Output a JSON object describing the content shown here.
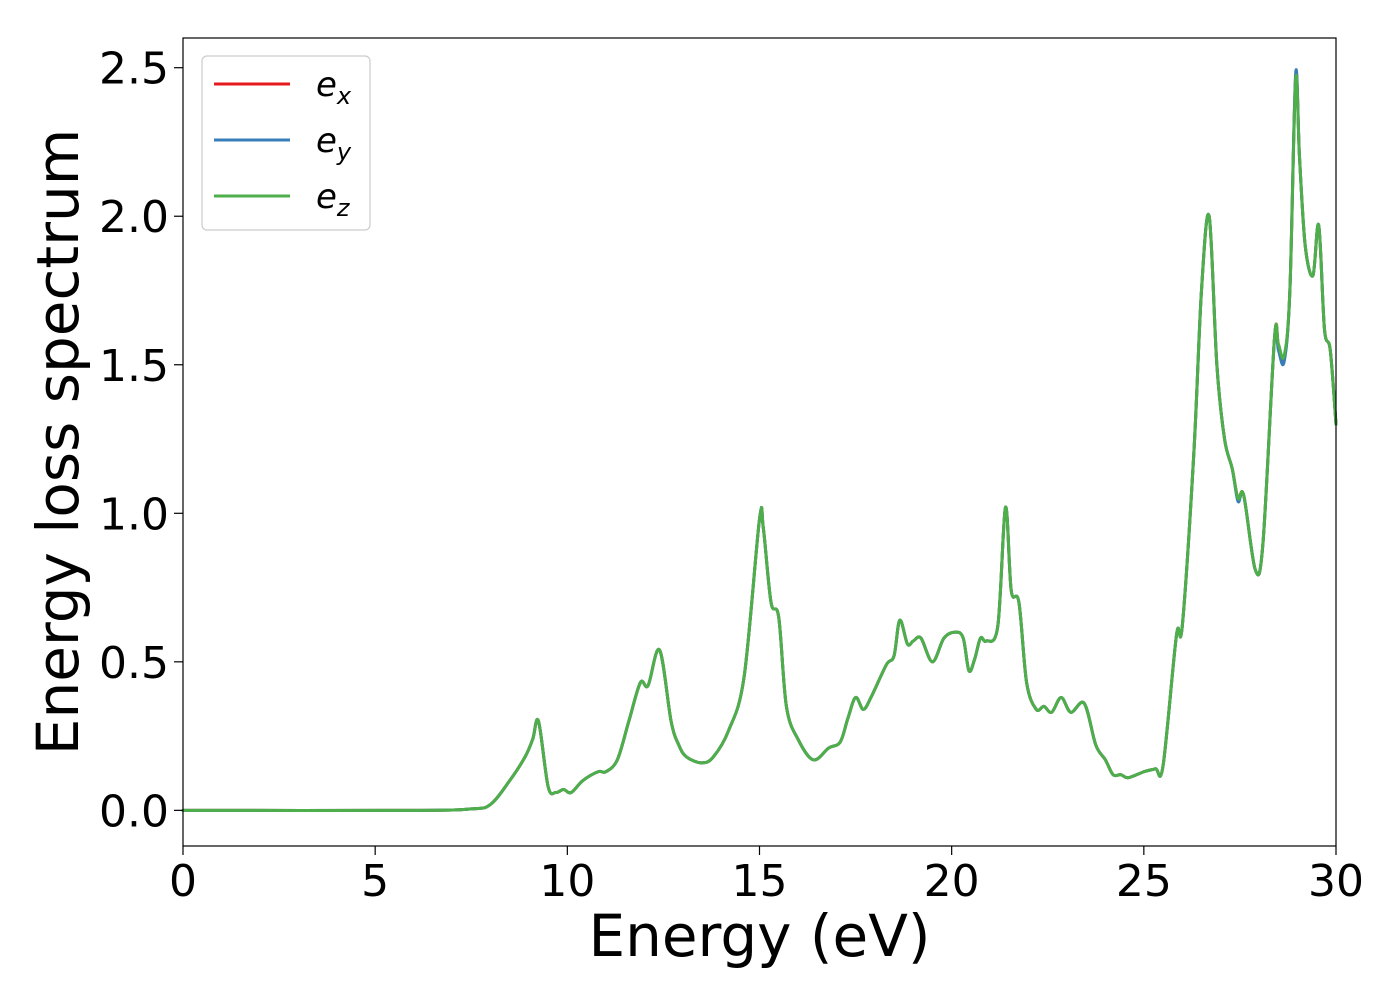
{
  "chart_data": {
    "type": "line",
    "xlabel": "Energy (eV)",
    "ylabel": "Energy loss spectrum",
    "xlim": [
      0,
      30
    ],
    "ylim": [
      -0.12,
      2.6
    ],
    "xticks": [
      0,
      5,
      10,
      15,
      20,
      25,
      30
    ],
    "xtick_labels": [
      "0",
      "5",
      "10",
      "15",
      "20",
      "25",
      "30"
    ],
    "yticks": [
      0.0,
      0.5,
      1.0,
      1.5,
      2.0,
      2.5
    ],
    "ytick_labels": [
      "0.0",
      "0.5",
      "1.0",
      "1.5",
      "2.0",
      "2.5"
    ],
    "grid": false,
    "legend_position": "top-left",
    "series": [
      {
        "name": "e",
        "subscript": "x",
        "color": "#e41a1c",
        "x": [
          0,
          6,
          7.5,
          8.0,
          8.5,
          8.9,
          9.1,
          9.25,
          9.5,
          9.7,
          9.9,
          10.1,
          10.4,
          10.8,
          11.0,
          11.3,
          11.6,
          11.9,
          12.1,
          12.4,
          12.7,
          12.9,
          13.1,
          13.5,
          13.8,
          14.2,
          14.6,
          15.0,
          15.1,
          15.3,
          15.5,
          15.7,
          16.0,
          16.4,
          16.8,
          17.1,
          17.3,
          17.5,
          17.7,
          17.9,
          18.3,
          18.5,
          18.65,
          18.85,
          19.0,
          19.2,
          19.5,
          19.8,
          20.1,
          20.3,
          20.45,
          20.6,
          20.75,
          20.9,
          21.2,
          21.4,
          21.55,
          21.75,
          21.95,
          22.2,
          22.4,
          22.6,
          22.85,
          23.1,
          23.45,
          23.75,
          24.0,
          24.2,
          24.4,
          24.6,
          25.0,
          25.3,
          25.5,
          25.85,
          26.0,
          26.3,
          26.5,
          26.7,
          26.9,
          27.1,
          27.3,
          27.45,
          27.6,
          27.9,
          28.1,
          28.4,
          28.5,
          28.65,
          28.8,
          28.95,
          29.05,
          29.2,
          29.4,
          29.55,
          29.7,
          29.85,
          30.0
        ],
        "y": [
          0.0,
          0.0,
          0.005,
          0.02,
          0.1,
          0.18,
          0.24,
          0.3,
          0.08,
          0.06,
          0.07,
          0.06,
          0.1,
          0.13,
          0.13,
          0.17,
          0.3,
          0.43,
          0.42,
          0.54,
          0.3,
          0.22,
          0.18,
          0.16,
          0.18,
          0.27,
          0.45,
          0.98,
          0.95,
          0.7,
          0.65,
          0.35,
          0.24,
          0.17,
          0.21,
          0.23,
          0.31,
          0.38,
          0.34,
          0.38,
          0.49,
          0.52,
          0.64,
          0.56,
          0.57,
          0.58,
          0.5,
          0.58,
          0.6,
          0.58,
          0.47,
          0.51,
          0.58,
          0.57,
          0.62,
          1.02,
          0.74,
          0.7,
          0.43,
          0.34,
          0.35,
          0.33,
          0.38,
          0.33,
          0.36,
          0.22,
          0.17,
          0.12,
          0.12,
          0.11,
          0.13,
          0.14,
          0.15,
          0.59,
          0.62,
          1.2,
          1.75,
          2.0,
          1.5,
          1.25,
          1.15,
          1.05,
          1.06,
          0.81,
          0.9,
          1.59,
          1.57,
          1.52,
          1.75,
          2.47,
          2.2,
          1.9,
          1.8,
          1.97,
          1.62,
          1.55,
          1.3
        ]
      },
      {
        "name": "e",
        "subscript": "y",
        "color": "#377eb8",
        "x": [
          0,
          6,
          7.5,
          8.0,
          8.5,
          8.9,
          9.1,
          9.25,
          9.5,
          9.7,
          9.9,
          10.1,
          10.4,
          10.8,
          11.0,
          11.3,
          11.6,
          11.9,
          12.1,
          12.4,
          12.7,
          12.9,
          13.1,
          13.5,
          13.8,
          14.2,
          14.6,
          15.0,
          15.1,
          15.3,
          15.5,
          15.7,
          16.0,
          16.4,
          16.8,
          17.1,
          17.3,
          17.5,
          17.7,
          17.9,
          18.3,
          18.5,
          18.65,
          18.85,
          19.0,
          19.2,
          19.5,
          19.8,
          20.1,
          20.3,
          20.45,
          20.6,
          20.75,
          20.9,
          21.2,
          21.4,
          21.55,
          21.75,
          21.95,
          22.2,
          22.4,
          22.6,
          22.85,
          23.1,
          23.45,
          23.75,
          24.0,
          24.2,
          24.4,
          24.6,
          25.0,
          25.3,
          25.5,
          25.85,
          26.0,
          26.3,
          26.5,
          26.7,
          26.9,
          27.1,
          27.3,
          27.45,
          27.6,
          27.9,
          28.1,
          28.4,
          28.5,
          28.65,
          28.8,
          28.95,
          29.05,
          29.2,
          29.4,
          29.55,
          29.7,
          29.85,
          30.0
        ],
        "y": [
          0.0,
          0.0,
          0.005,
          0.02,
          0.1,
          0.18,
          0.24,
          0.3,
          0.08,
          0.06,
          0.07,
          0.06,
          0.1,
          0.13,
          0.13,
          0.17,
          0.3,
          0.43,
          0.42,
          0.54,
          0.3,
          0.22,
          0.18,
          0.16,
          0.18,
          0.27,
          0.45,
          0.98,
          0.95,
          0.7,
          0.65,
          0.35,
          0.24,
          0.17,
          0.21,
          0.23,
          0.31,
          0.38,
          0.34,
          0.38,
          0.49,
          0.52,
          0.64,
          0.56,
          0.57,
          0.58,
          0.5,
          0.58,
          0.6,
          0.58,
          0.47,
          0.51,
          0.58,
          0.57,
          0.62,
          1.02,
          0.74,
          0.7,
          0.43,
          0.34,
          0.35,
          0.33,
          0.38,
          0.33,
          0.36,
          0.22,
          0.17,
          0.12,
          0.12,
          0.11,
          0.13,
          0.14,
          0.15,
          0.59,
          0.62,
          1.2,
          1.75,
          2.0,
          1.5,
          1.25,
          1.15,
          1.04,
          1.06,
          0.81,
          0.9,
          1.59,
          1.55,
          1.51,
          1.75,
          2.48,
          2.2,
          1.9,
          1.8,
          1.97,
          1.62,
          1.55,
          1.3
        ]
      },
      {
        "name": "e",
        "subscript": "z",
        "color": "#4daf4a",
        "x": [
          0,
          6,
          7.5,
          8.0,
          8.5,
          8.9,
          9.1,
          9.25,
          9.5,
          9.7,
          9.9,
          10.1,
          10.4,
          10.8,
          11.0,
          11.3,
          11.6,
          11.9,
          12.1,
          12.4,
          12.7,
          12.9,
          13.1,
          13.5,
          13.8,
          14.2,
          14.6,
          15.0,
          15.1,
          15.3,
          15.5,
          15.7,
          16.0,
          16.4,
          16.8,
          17.1,
          17.3,
          17.5,
          17.7,
          17.9,
          18.3,
          18.5,
          18.65,
          18.85,
          19.0,
          19.2,
          19.5,
          19.8,
          20.1,
          20.3,
          20.45,
          20.6,
          20.75,
          20.9,
          21.2,
          21.4,
          21.55,
          21.75,
          21.95,
          22.2,
          22.4,
          22.6,
          22.85,
          23.1,
          23.45,
          23.75,
          24.0,
          24.2,
          24.4,
          24.6,
          25.0,
          25.3,
          25.5,
          25.85,
          26.0,
          26.3,
          26.5,
          26.7,
          26.9,
          27.1,
          27.3,
          27.45,
          27.6,
          27.9,
          28.1,
          28.4,
          28.5,
          28.65,
          28.8,
          28.95,
          29.05,
          29.2,
          29.4,
          29.55,
          29.7,
          29.85,
          30.0
        ],
        "y": [
          0.0,
          0.0,
          0.005,
          0.02,
          0.1,
          0.18,
          0.24,
          0.3,
          0.08,
          0.06,
          0.07,
          0.06,
          0.1,
          0.13,
          0.13,
          0.17,
          0.3,
          0.43,
          0.42,
          0.54,
          0.3,
          0.22,
          0.18,
          0.16,
          0.18,
          0.27,
          0.45,
          0.98,
          0.95,
          0.7,
          0.65,
          0.35,
          0.24,
          0.17,
          0.21,
          0.23,
          0.31,
          0.38,
          0.34,
          0.38,
          0.49,
          0.52,
          0.64,
          0.56,
          0.57,
          0.58,
          0.5,
          0.58,
          0.6,
          0.58,
          0.47,
          0.51,
          0.58,
          0.57,
          0.62,
          1.02,
          0.74,
          0.7,
          0.43,
          0.34,
          0.35,
          0.33,
          0.38,
          0.33,
          0.36,
          0.22,
          0.17,
          0.12,
          0.12,
          0.11,
          0.13,
          0.14,
          0.15,
          0.59,
          0.62,
          1.2,
          1.75,
          2.0,
          1.5,
          1.25,
          1.15,
          1.05,
          1.06,
          0.81,
          0.9,
          1.59,
          1.57,
          1.53,
          1.75,
          2.46,
          2.2,
          1.9,
          1.8,
          1.97,
          1.62,
          1.55,
          1.3
        ]
      }
    ]
  }
}
